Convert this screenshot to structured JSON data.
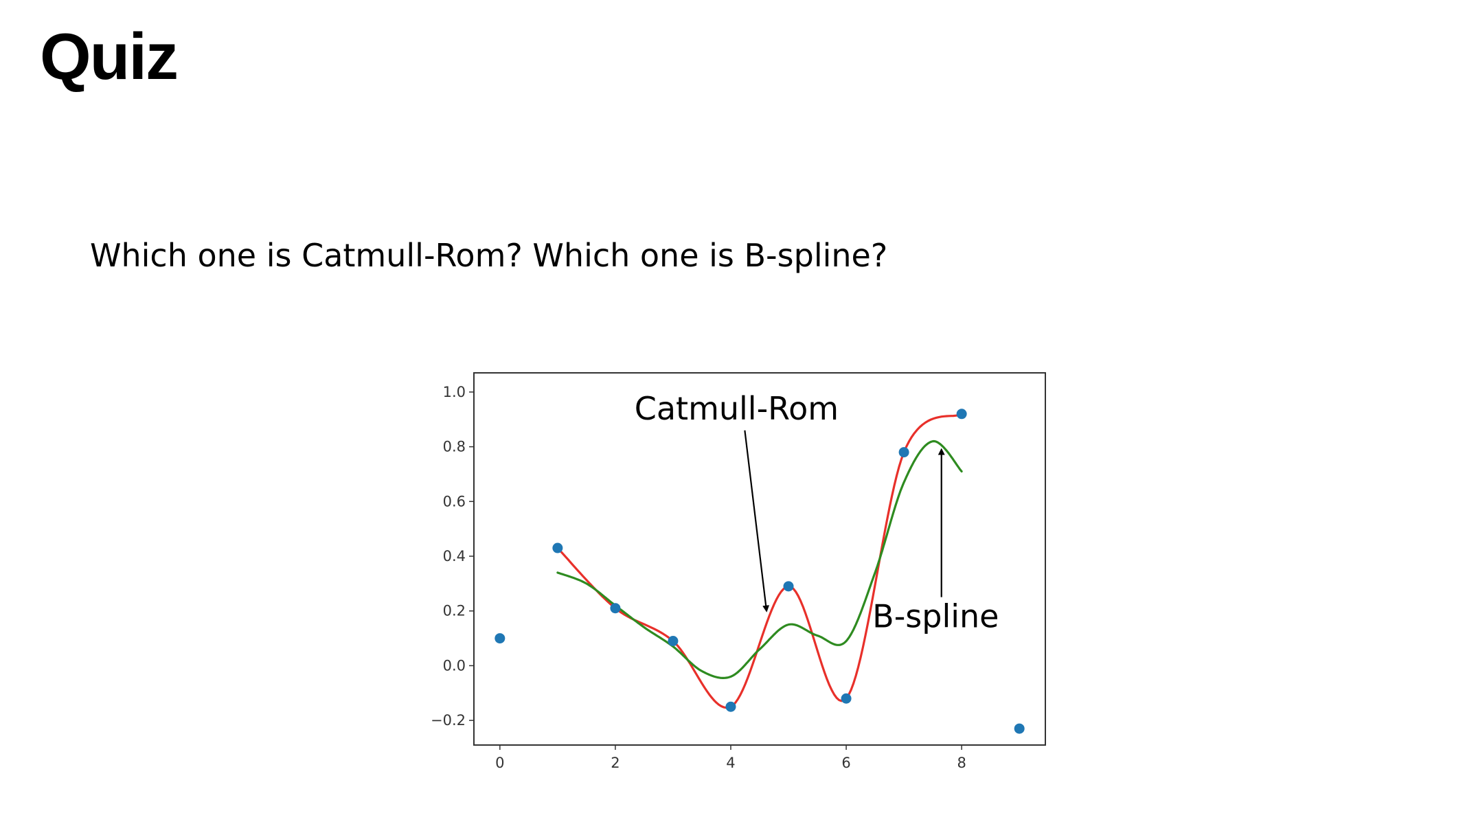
{
  "slide": {
    "title": "Quiz",
    "question": "Which one is Catmull-Rom? Which one is B-spline?"
  },
  "colors": {
    "points": "#1f77b4",
    "catmull_rom": "#e8302a",
    "b_spline": "#2e8b20",
    "axes": "#333333"
  },
  "chart_data": {
    "type": "scatter",
    "title": "",
    "xlabel": "",
    "ylabel": "",
    "xlim": [
      -0.45,
      9.45
    ],
    "ylim": [
      -0.29,
      1.07
    ],
    "xticks": [
      0,
      2,
      4,
      6,
      8
    ],
    "yticks": [
      -0.2,
      0.0,
      0.2,
      0.4,
      0.6,
      0.8,
      1.0
    ],
    "ytick_labels": [
      "−0.2",
      "0.0",
      "0.2",
      "0.4",
      "0.6",
      "0.8",
      "1.0"
    ],
    "grid": false,
    "points": {
      "x": [
        0,
        1,
        2,
        3,
        4,
        5,
        6,
        7,
        8,
        9
      ],
      "y": [
        0.1,
        0.43,
        0.21,
        0.09,
        -0.15,
        0.29,
        -0.12,
        0.78,
        0.92,
        -0.23
      ]
    },
    "series": [
      {
        "name": "Catmull-Rom",
        "type": "line",
        "color": "#e8302a",
        "x": [
          1,
          2,
          3,
          4,
          5,
          6,
          7,
          8
        ],
        "y": [
          0.43,
          0.21,
          0.09,
          -0.15,
          0.29,
          -0.12,
          0.78,
          0.92
        ]
      },
      {
        "name": "B-spline",
        "type": "line",
        "color": "#2e8b20",
        "x": [
          1,
          1.5,
          2,
          2.5,
          3,
          3.5,
          4,
          4.5,
          5,
          5.5,
          6,
          6.5,
          7,
          7.5,
          8
        ],
        "y": [
          0.34,
          0.3,
          0.22,
          0.14,
          0.07,
          -0.02,
          -0.04,
          0.06,
          0.15,
          0.11,
          0.09,
          0.34,
          0.67,
          0.82,
          0.71
        ]
      }
    ],
    "annotations": [
      {
        "text": "Catmull-Rom",
        "text_x": 4.1,
        "text_y": 0.9,
        "arrow_to": [
          4.62,
          0.2
        ]
      },
      {
        "text": "B-spline",
        "text_x": 7.55,
        "text_y": 0.14,
        "arrow_to": [
          7.65,
          0.79
        ]
      }
    ]
  }
}
